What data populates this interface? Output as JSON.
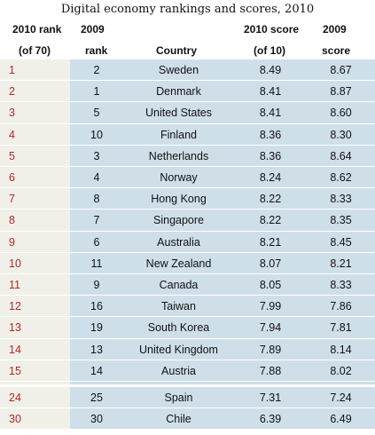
{
  "title": "Digital economy rankings and scores, 2010",
  "headers": {
    "rank2010_line1": "2010 rank",
    "rank2010_line2": "(of 70)",
    "rank2009_line1": "2009",
    "rank2009_line2": "rank",
    "country": "Country",
    "score2010_line1": "2010 score",
    "score2010_line2": "(of 10)",
    "score2009_line1": "2009",
    "score2009_line2": "score"
  },
  "colors": {
    "rank_text": "#b4252a",
    "left_band": "#f1f0e8",
    "data_band": "#cfdfe9"
  },
  "chart_data": {
    "type": "table",
    "title": "Digital economy rankings and scores, 2010",
    "columns": [
      "2010 rank (of 70)",
      "2009 rank",
      "Country",
      "2010 score (of 10)",
      "2009 score"
    ],
    "rows": [
      {
        "rank2010": "1",
        "rank2009": "2",
        "country": "Sweden",
        "score2010": "8.49",
        "score2009": "8.67"
      },
      {
        "rank2010": "2",
        "rank2009": "1",
        "country": "Denmark",
        "score2010": "8.41",
        "score2009": "8.87"
      },
      {
        "rank2010": "3",
        "rank2009": "5",
        "country": "United States",
        "score2010": "8.41",
        "score2009": "8.60"
      },
      {
        "rank2010": "4",
        "rank2009": "10",
        "country": "Finland",
        "score2010": "8.36",
        "score2009": "8.30"
      },
      {
        "rank2010": "5",
        "rank2009": "3",
        "country": "Netherlands",
        "score2010": "8.36",
        "score2009": "8.64"
      },
      {
        "rank2010": "6",
        "rank2009": "4",
        "country": "Norway",
        "score2010": "8.24",
        "score2009": "8.62"
      },
      {
        "rank2010": "7",
        "rank2009": "8",
        "country": "Hong Kong",
        "score2010": "8.22",
        "score2009": "8.33"
      },
      {
        "rank2010": "8",
        "rank2009": "7",
        "country": "Singapore",
        "score2010": "8.22",
        "score2009": "8.35"
      },
      {
        "rank2010": "9",
        "rank2009": "6",
        "country": "Australia",
        "score2010": "8.21",
        "score2009": "8.45"
      },
      {
        "rank2010": "10",
        "rank2009": "11",
        "country": "New Zealand",
        "score2010": "8.07",
        "score2009": "8.21"
      },
      {
        "rank2010": "11",
        "rank2009": "9",
        "country": "Canada",
        "score2010": "8.05",
        "score2009": "8.33"
      },
      {
        "rank2010": "12",
        "rank2009": "16",
        "country": "Taiwan",
        "score2010": "7.99",
        "score2009": "7.86"
      },
      {
        "rank2010": "13",
        "rank2009": "19",
        "country": "South Korea",
        "score2010": "7.94",
        "score2009": "7.81"
      },
      {
        "rank2010": "14",
        "rank2009": "13",
        "country": "United Kingdom",
        "score2010": "7.89",
        "score2009": "8.14"
      },
      {
        "rank2010": "15",
        "rank2009": "14",
        "country": "Austria",
        "score2010": "7.88",
        "score2009": "8.02"
      }
    ],
    "extra_rows": [
      {
        "rank2010": "24",
        "rank2009": "25",
        "country": "Spain",
        "score2010": "7.31",
        "score2009": "7.24"
      },
      {
        "rank2010": "30",
        "rank2009": "30",
        "country": "Chile",
        "score2010": "6.39",
        "score2009": "6.49"
      }
    ]
  }
}
